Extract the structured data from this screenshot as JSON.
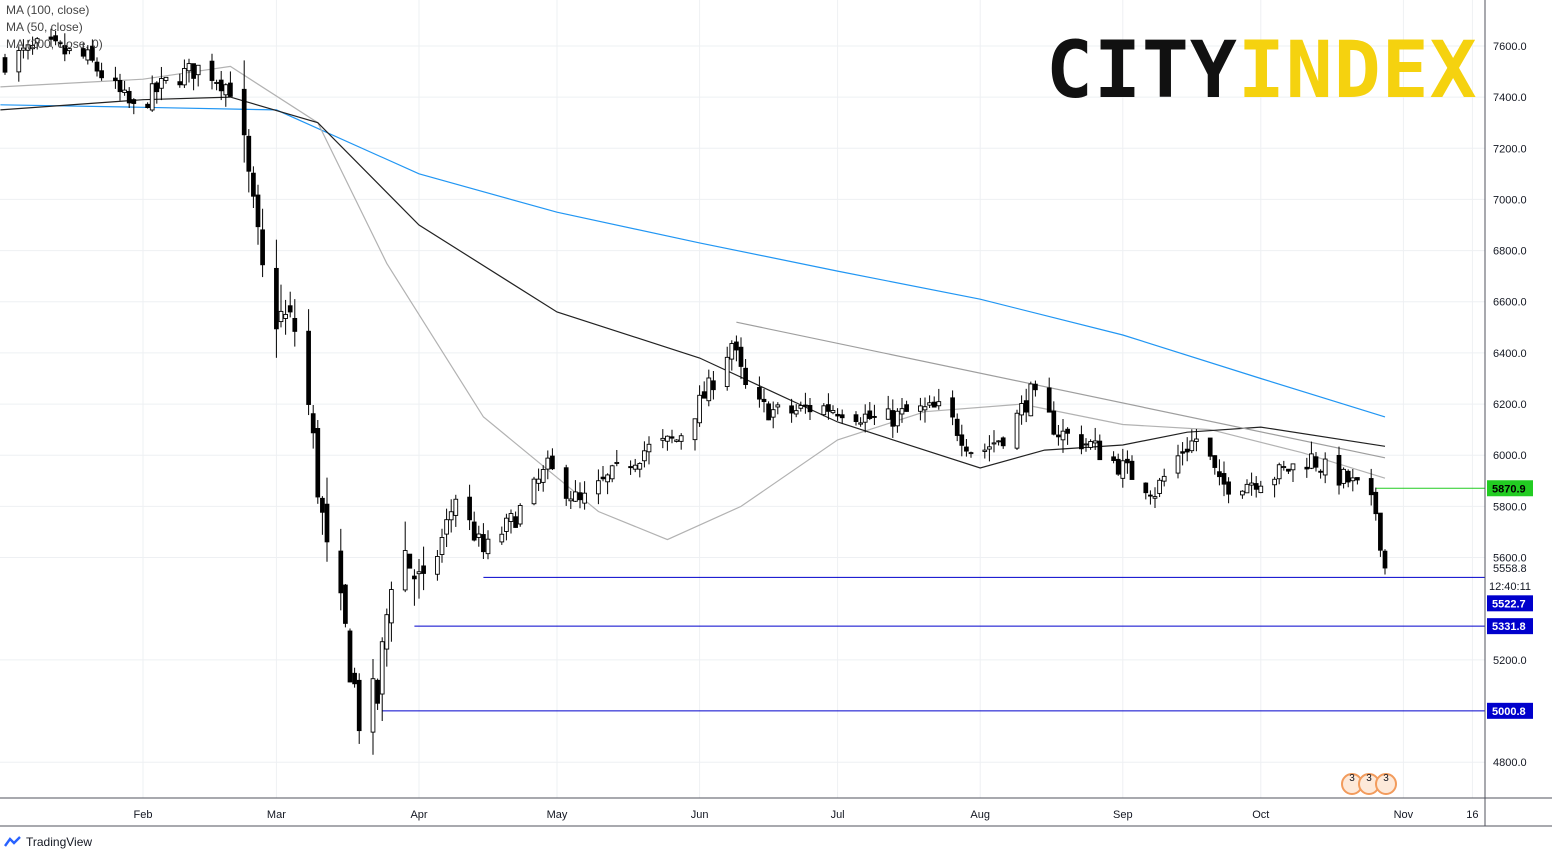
{
  "legend": [
    "MA (100, close)",
    "MA (50, close)",
    "MA (200, close, 0)"
  ],
  "logo": {
    "part1": "CITY",
    "part2": "INDEX"
  },
  "footer": {
    "brand": "TradingView"
  },
  "countdown": "12:40:11",
  "event_badge": "3",
  "colors": {
    "ma200": "#2196f3",
    "ma100": "#222222",
    "ma50": "#b2b2b2",
    "trend": "#9e9e9e",
    "support": "#0000cc",
    "resistance": "#22cc22"
  },
  "chart_data": {
    "type": "candlestick",
    "ylim": [
      4660,
      7800
    ],
    "x_ticks": [
      "Feb",
      "Mar",
      "Apr",
      "May",
      "Jun",
      "Jul",
      "Aug",
      "Sep",
      "Oct",
      "Nov",
      "16"
    ],
    "y_ticks": [
      "7600.0",
      "7400.0",
      "7200.0",
      "7000.0",
      "6800.0",
      "6600.0",
      "6400.0",
      "6200.0",
      "6000.0",
      "5800.0",
      "5600.0",
      "5200.0",
      "4800.0"
    ],
    "last_price": "5558.8",
    "levels": [
      {
        "label": "5870.9",
        "value": 5870.9,
        "kind": "resistance"
      },
      {
        "label": "5522.7",
        "value": 5522.7,
        "kind": "support"
      },
      {
        "label": "5331.8",
        "value": 5331.8,
        "kind": "support"
      },
      {
        "label": "5000.8",
        "value": 5000.8,
        "kind": "support"
      }
    ],
    "anchors": [
      [
        "01-02",
        7540
      ],
      [
        "01-10",
        7600
      ],
      [
        "01-20",
        7550
      ],
      [
        "01-30",
        7350
      ],
      [
        "02-07",
        7470
      ],
      [
        "02-14",
        7520
      ],
      [
        "02-21",
        7420
      ],
      [
        "02-28",
        6580
      ],
      [
        "03-06",
        6480
      ],
      [
        "03-12",
        5600
      ],
      [
        "03-16",
        5300
      ],
      [
        "03-19",
        4980
      ],
      [
        "03-23",
        5050
      ],
      [
        "03-27",
        5700
      ],
      [
        "04-02",
        5450
      ],
      [
        "04-09",
        5840
      ],
      [
        "04-15",
        5620
      ],
      [
        "04-22",
        5760
      ],
      [
        "04-29",
        5950
      ],
      [
        "05-06",
        5810
      ],
      [
        "05-13",
        5920
      ],
      [
        "05-20",
        6020
      ],
      [
        "05-27",
        6060
      ],
      [
        "06-03",
        6260
      ],
      [
        "06-08",
        6440
      ],
      [
        "06-12",
        6200
      ],
      [
        "06-19",
        6160
      ],
      [
        "06-26",
        6190
      ],
      [
        "07-03",
        6180
      ],
      [
        "07-10",
        6130
      ],
      [
        "07-17",
        6170
      ],
      [
        "07-24",
        6180
      ],
      [
        "07-31",
        6000
      ],
      [
        "08-07",
        6090
      ],
      [
        "08-12",
        6240
      ],
      [
        "08-18",
        6090
      ],
      [
        "08-25",
        6040
      ],
      [
        "09-01",
        5950
      ],
      [
        "09-08",
        5860
      ],
      [
        "09-14",
        6020
      ],
      [
        "09-18",
        6080
      ],
      [
        "09-22",
        5880
      ],
      [
        "09-29",
        5900
      ],
      [
        "10-05",
        5930
      ],
      [
        "10-12",
        5990
      ],
      [
        "10-16",
        5930
      ],
      [
        "10-20",
        5900
      ],
      [
        "10-23",
        5860
      ],
      [
        "10-26",
        5780
      ],
      [
        "10-28",
        5560
      ]
    ],
    "ma200": [
      [
        "01-01",
        7370
      ],
      [
        "02-01",
        7360
      ],
      [
        "03-01",
        7350
      ],
      [
        "04-01",
        7100
      ],
      [
        "05-01",
        6950
      ],
      [
        "06-01",
        6830
      ],
      [
        "07-01",
        6720
      ],
      [
        "08-01",
        6610
      ],
      [
        "09-01",
        6470
      ],
      [
        "10-01",
        6300
      ],
      [
        "10-28",
        6150
      ]
    ],
    "ma100": [
      [
        "01-01",
        7350
      ],
      [
        "02-01",
        7390
      ],
      [
        "02-20",
        7400
      ],
      [
        "03-10",
        7300
      ],
      [
        "04-01",
        6900
      ],
      [
        "05-01",
        6560
      ],
      [
        "06-01",
        6380
      ],
      [
        "07-01",
        6130
      ],
      [
        "08-01",
        5950
      ],
      [
        "08-15",
        6020
      ],
      [
        "09-01",
        6040
      ],
      [
        "09-15",
        6090
      ],
      [
        "10-01",
        6110
      ],
      [
        "10-28",
        6035
      ]
    ],
    "ma50": [
      [
        "01-01",
        7440
      ],
      [
        "02-01",
        7470
      ],
      [
        "02-20",
        7520
      ],
      [
        "03-10",
        7300
      ],
      [
        "03-25",
        6750
      ],
      [
        "04-15",
        6150
      ],
      [
        "05-10",
        5780
      ],
      [
        "05-25",
        5670
      ],
      [
        "06-10",
        5800
      ],
      [
        "07-01",
        6060
      ],
      [
        "07-20",
        6170
      ],
      [
        "08-10",
        6200
      ],
      [
        "09-01",
        6120
      ],
      [
        "09-20",
        6100
      ],
      [
        "10-10",
        6010
      ],
      [
        "10-28",
        5910
      ]
    ],
    "trend_line": [
      [
        "06-09",
        6520
      ],
      [
        "10-28",
        5990
      ]
    ]
  }
}
